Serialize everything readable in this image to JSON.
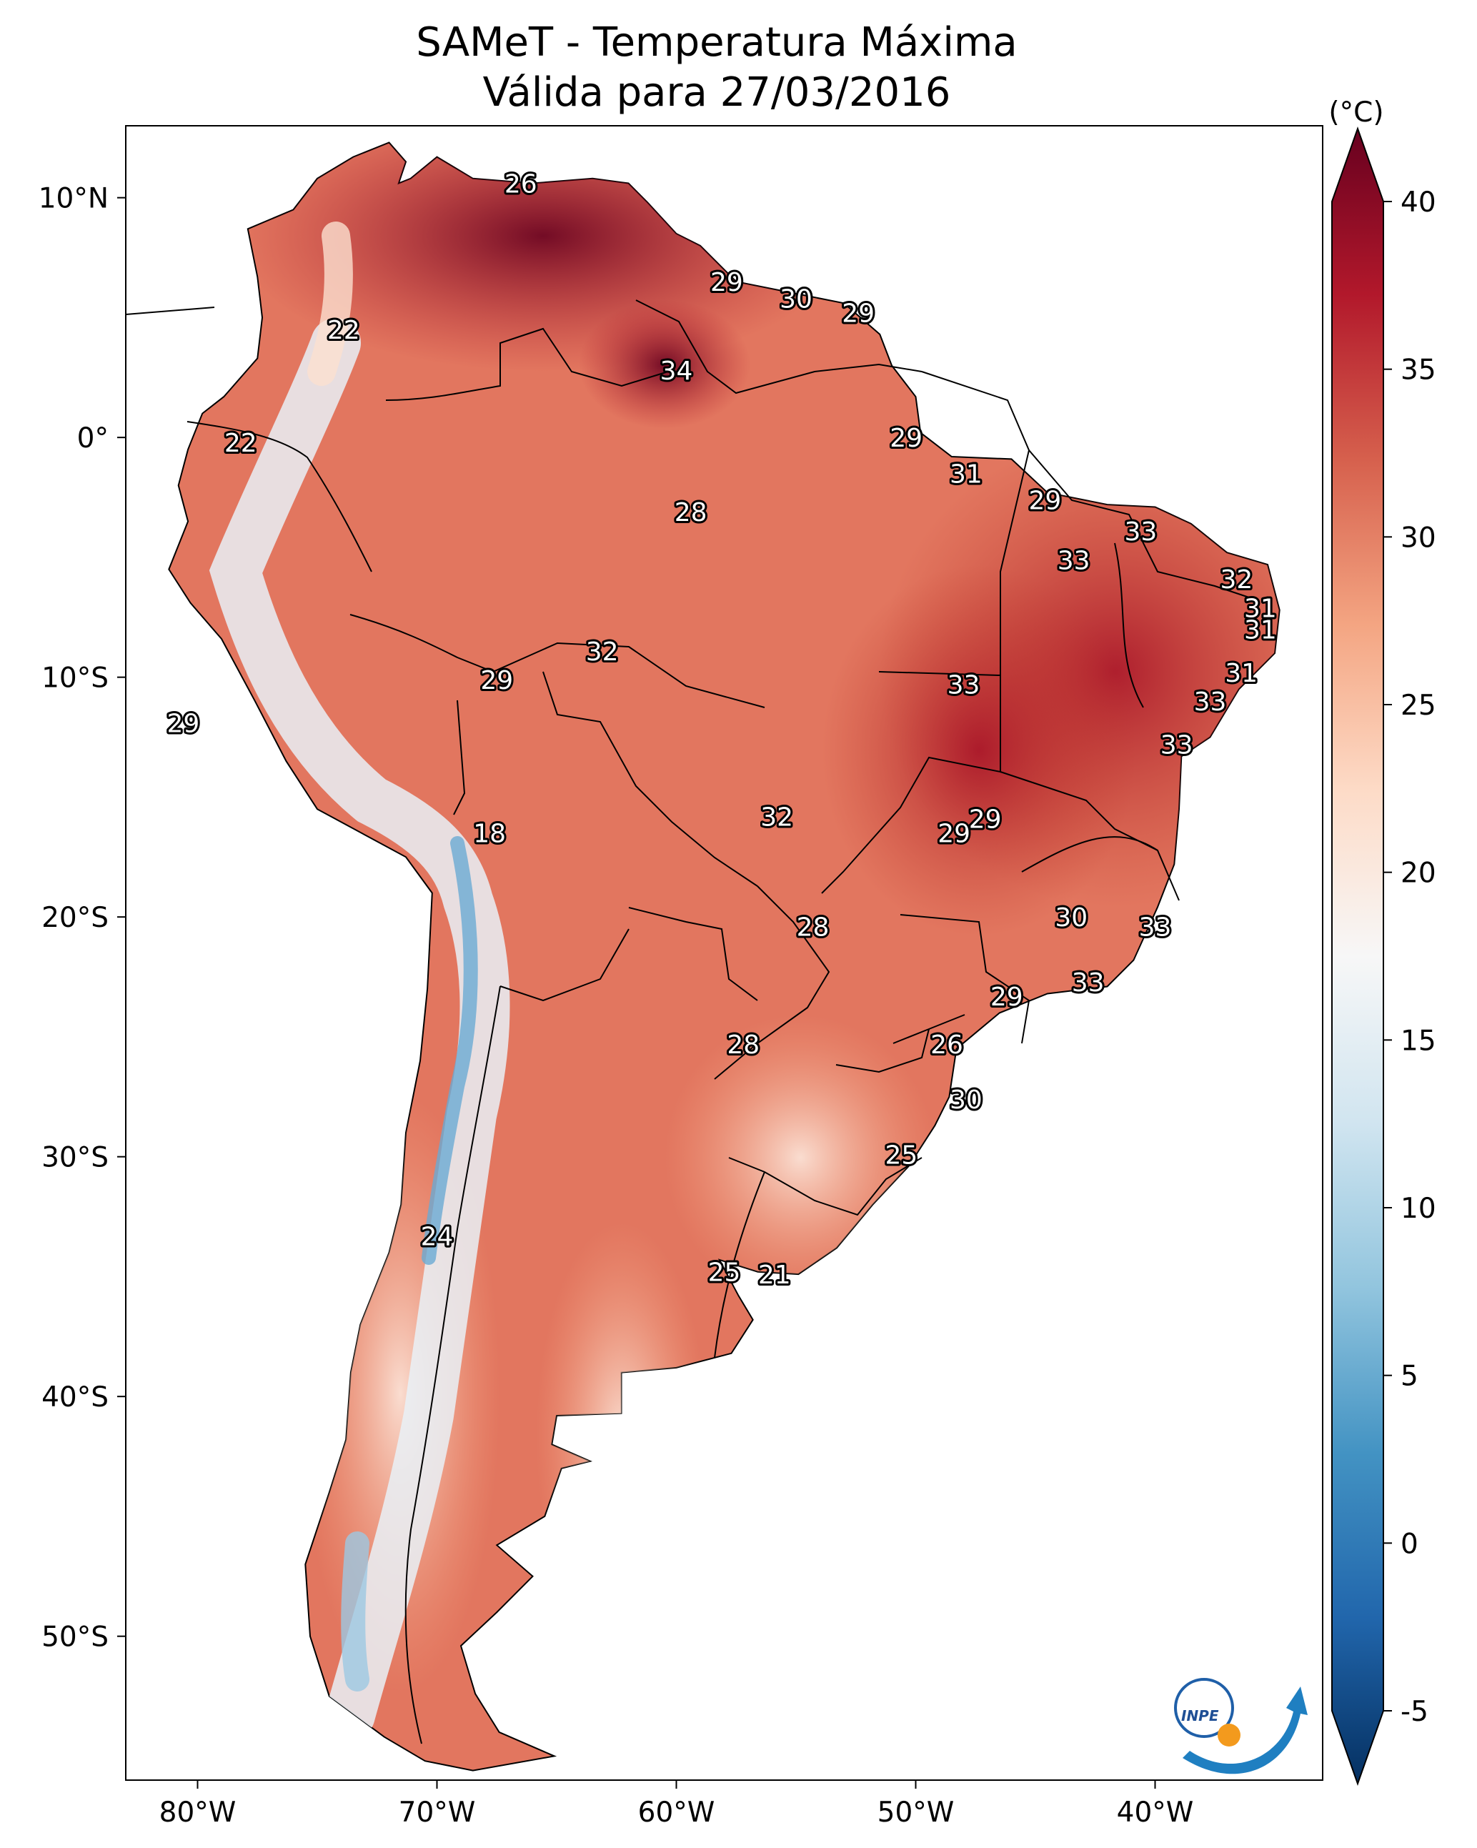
{
  "title": {
    "line1": "SAMeT - Temperatura Máxima",
    "line2": "Válida para 27/03/2016"
  },
  "colorbar": {
    "unit": "(°C)",
    "ticks": [
      "40",
      "35",
      "30",
      "25",
      "20",
      "15",
      "10",
      "5",
      "0",
      "-5"
    ],
    "range": [
      -5,
      40
    ],
    "colors": [
      "#053061",
      "#2166ac",
      "#4393c3",
      "#92c5de",
      "#d1e5f0",
      "#f7f7f7",
      "#fddbc7",
      "#f4a582",
      "#d6604d",
      "#b2182b",
      "#67001f"
    ]
  },
  "axes": {
    "lon_labels": [
      "80°W",
      "70°W",
      "60°W",
      "50°W",
      "40°W"
    ],
    "lat_labels": [
      "10°N",
      "0°",
      "10°S",
      "20°S",
      "30°S",
      "40°S",
      "50°S"
    ]
  },
  "logo": {
    "text": "INPE"
  },
  "temperature_labels": [
    {
      "value": "26",
      "lon": -66.5,
      "lat": 10.6
    },
    {
      "value": "22",
      "lon": -73.9,
      "lat": 4.5
    },
    {
      "value": "22",
      "lon": -78.2,
      "lat": -0.2
    },
    {
      "value": "29",
      "lon": -57.9,
      "lat": 6.5
    },
    {
      "value": "30",
      "lon": -55.0,
      "lat": 5.8
    },
    {
      "value": "29",
      "lon": -52.4,
      "lat": 5.2
    },
    {
      "value": "34",
      "lon": -60.0,
      "lat": 2.8
    },
    {
      "value": "29",
      "lon": -50.4,
      "lat": 0.0
    },
    {
      "value": "31",
      "lon": -47.9,
      "lat": -1.5
    },
    {
      "value": "28",
      "lon": -59.4,
      "lat": -3.1
    },
    {
      "value": "29",
      "lon": -44.6,
      "lat": -2.6
    },
    {
      "value": "33",
      "lon": -40.6,
      "lat": -3.9
    },
    {
      "value": "33",
      "lon": -43.4,
      "lat": -5.1
    },
    {
      "value": "32",
      "lon": -36.6,
      "lat": -5.9
    },
    {
      "value": "31",
      "lon": -35.6,
      "lat": -7.1
    },
    {
      "value": "31",
      "lon": -35.6,
      "lat": -8.0
    },
    {
      "value": "32",
      "lon": -63.1,
      "lat": -8.9
    },
    {
      "value": "29",
      "lon": -67.5,
      "lat": -10.1
    },
    {
      "value": "33",
      "lon": -48.0,
      "lat": -10.3
    },
    {
      "value": "31",
      "lon": -36.4,
      "lat": -9.8
    },
    {
      "value": "33",
      "lon": -37.7,
      "lat": -11.0
    },
    {
      "value": "29",
      "lon": -80.6,
      "lat": -11.9
    },
    {
      "value": "33",
      "lon": -39.1,
      "lat": -12.8
    },
    {
      "value": "29",
      "lon": -47.1,
      "lat": -15.9
    },
    {
      "value": "32",
      "lon": -55.8,
      "lat": -15.8
    },
    {
      "value": "29",
      "lon": -48.4,
      "lat": -16.5
    },
    {
      "value": "18",
      "lon": -67.8,
      "lat": -16.5
    },
    {
      "value": "30",
      "lon": -43.5,
      "lat": -20.0
    },
    {
      "value": "33",
      "lon": -40.0,
      "lat": -20.4
    },
    {
      "value": "28",
      "lon": -54.3,
      "lat": -20.4
    },
    {
      "value": "33",
      "lon": -42.8,
      "lat": -22.7
    },
    {
      "value": "29",
      "lon": -46.2,
      "lat": -23.3
    },
    {
      "value": "28",
      "lon": -57.2,
      "lat": -25.3
    },
    {
      "value": "26",
      "lon": -48.7,
      "lat": -25.3
    },
    {
      "value": "30",
      "lon": -47.9,
      "lat": -27.6
    },
    {
      "value": "25",
      "lon": -50.6,
      "lat": -29.9
    },
    {
      "value": "24",
      "lon": -70.0,
      "lat": -33.3
    },
    {
      "value": "25",
      "lon": -58.0,
      "lat": -34.8
    },
    {
      "value": "21",
      "lon": -55.9,
      "lat": -34.9
    }
  ]
}
